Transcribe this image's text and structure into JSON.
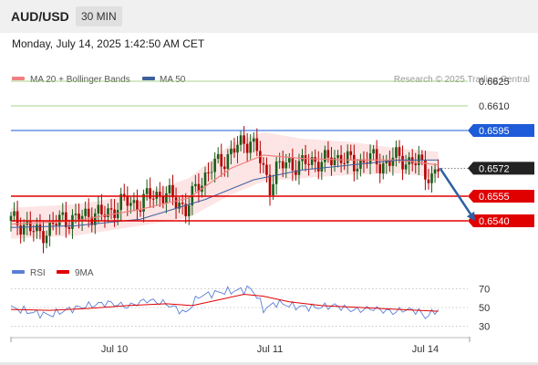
{
  "header": {
    "symbol": "AUD/USD",
    "timeframe": "30 MIN",
    "datetime": "Monday, July 14, 2025 1:42:50 AM CET"
  },
  "legend": {
    "ma20_label": "MA 20 + Bollinger Bands",
    "ma50_label": "MA 50",
    "research": "Research © 2025 Trading Central",
    "rsi_label": "RSI",
    "ma9_label": "9MA"
  },
  "colors": {
    "candle_up": "#1a5e1a",
    "candle_down": "#b30000",
    "ma20": "#f08080",
    "bollinger_fill": "#fde0e0",
    "ma50": "#3e5f9e",
    "resistance_far": "#8cc56a",
    "pivot": "#1e5bd8",
    "support": "#e00000",
    "rsi": "#5b7fd6",
    "rsi_ma": "#e00000",
    "arrow": "#2e5fa3",
    "current_price_bg": "#222222"
  },
  "chart_data": [
    {
      "type": "candlestick",
      "title": "AUD/USD 30 MIN",
      "x_tick_labels": [
        "Jul 10",
        "Jul 11",
        "Jul 14"
      ],
      "price_levels": [
        {
          "value": 0.6625,
          "label": "0.6625",
          "role": "resistance"
        },
        {
          "value": 0.661,
          "label": "0.6610",
          "role": "resistance"
        },
        {
          "value": 0.6595,
          "label": "0.6595",
          "role": "pivot"
        },
        {
          "value": 0.6572,
          "label": "0.6572",
          "role": "current"
        },
        {
          "value": 0.6555,
          "label": "0.6555",
          "role": "support"
        },
        {
          "value": 0.654,
          "label": "0.6540",
          "role": "support"
        }
      ],
      "y_range": [
        0.652,
        0.664
      ],
      "close_path": [
        [
          0,
          0.654
        ],
        [
          4,
          0.6538
        ],
        [
          8,
          0.6532
        ],
        [
          12,
          0.6535
        ],
        [
          16,
          0.6542
        ],
        [
          20,
          0.654
        ],
        [
          24,
          0.6545
        ],
        [
          28,
          0.6543
        ],
        [
          32,
          0.6548
        ],
        [
          36,
          0.6552
        ],
        [
          40,
          0.655
        ],
        [
          44,
          0.6557
        ],
        [
          48,
          0.6555
        ],
        [
          52,
          0.6552
        ],
        [
          54,
          0.6546
        ],
        [
          58,
          0.6563
        ],
        [
          62,
          0.6572
        ],
        [
          66,
          0.6578
        ],
        [
          70,
          0.6585
        ],
        [
          74,
          0.659
        ],
        [
          76,
          0.6582
        ],
        [
          78,
          0.657
        ],
        [
          80,
          0.6562
        ],
        [
          82,
          0.6572
        ],
        [
          86,
          0.6575
        ],
        [
          90,
          0.6574
        ],
        [
          94,
          0.6577
        ],
        [
          98,
          0.6576
        ],
        [
          102,
          0.658
        ],
        [
          106,
          0.6573
        ],
        [
          110,
          0.6579
        ],
        [
          114,
          0.6574
        ],
        [
          118,
          0.6578
        ],
        [
          122,
          0.6577
        ],
        [
          126,
          0.6575
        ],
        [
          128,
          0.657
        ],
        [
          130,
          0.6567
        ],
        [
          132,
          0.6572
        ]
      ],
      "ma50_path": [
        [
          0,
          0.6536
        ],
        [
          20,
          0.6537
        ],
        [
          40,
          0.6541
        ],
        [
          60,
          0.6553
        ],
        [
          75,
          0.6565
        ],
        [
          90,
          0.6571
        ],
        [
          105,
          0.6574
        ],
        [
          120,
          0.6577
        ],
        [
          132,
          0.6577
        ]
      ],
      "ma20_path": [
        [
          0,
          0.6538
        ],
        [
          20,
          0.654
        ],
        [
          40,
          0.6547
        ],
        [
          55,
          0.6554
        ],
        [
          68,
          0.6572
        ],
        [
          78,
          0.658
        ],
        [
          90,
          0.6578
        ],
        [
          105,
          0.6577
        ],
        [
          120,
          0.6577
        ],
        [
          132,
          0.6574
        ]
      ],
      "bollinger_upper": [
        [
          0,
          0.6548
        ],
        [
          20,
          0.655
        ],
        [
          40,
          0.6556
        ],
        [
          55,
          0.6566
        ],
        [
          68,
          0.6587
        ],
        [
          78,
          0.6594
        ],
        [
          90,
          0.659
        ],
        [
          105,
          0.6588
        ],
        [
          120,
          0.6584
        ],
        [
          132,
          0.6582
        ]
      ],
      "bollinger_lower": [
        [
          0,
          0.6529
        ],
        [
          20,
          0.6531
        ],
        [
          40,
          0.6537
        ],
        [
          55,
          0.6542
        ],
        [
          68,
          0.6556
        ],
        [
          78,
          0.6564
        ],
        [
          90,
          0.6566
        ],
        [
          105,
          0.6568
        ],
        [
          120,
          0.6569
        ],
        [
          132,
          0.6566
        ]
      ],
      "forecast_arrow": {
        "from": [
          132,
          0.6572
        ],
        "to": [
          140,
          0.654
        ]
      }
    },
    {
      "type": "line",
      "title": "RSI",
      "y_range": [
        20,
        80
      ],
      "y_ticks": [
        70,
        50,
        30
      ],
      "series": [
        {
          "name": "RSI",
          "path": [
            [
              0,
              50
            ],
            [
              6,
              45
            ],
            [
              12,
              42
            ],
            [
              18,
              48
            ],
            [
              24,
              52
            ],
            [
              30,
              55
            ],
            [
              36,
              51
            ],
            [
              42,
              58
            ],
            [
              48,
              54
            ],
            [
              54,
              44
            ],
            [
              58,
              62
            ],
            [
              64,
              66
            ],
            [
              70,
              68
            ],
            [
              74,
              70
            ],
            [
              76,
              62
            ],
            [
              78,
              48
            ],
            [
              82,
              55
            ],
            [
              88,
              51
            ],
            [
              94,
              50
            ],
            [
              100,
              52
            ],
            [
              106,
              47
            ],
            [
              112,
              49
            ],
            [
              118,
              45
            ],
            [
              122,
              48
            ],
            [
              126,
              46
            ],
            [
              128,
              40
            ],
            [
              130,
              44
            ],
            [
              132,
              48
            ]
          ]
        },
        {
          "name": "9MA",
          "path": [
            [
              0,
              48
            ],
            [
              12,
              47
            ],
            [
              24,
              49
            ],
            [
              36,
              52
            ],
            [
              48,
              54
            ],
            [
              56,
              52
            ],
            [
              64,
              58
            ],
            [
              72,
              64
            ],
            [
              78,
              62
            ],
            [
              86,
              56
            ],
            [
              96,
              52
            ],
            [
              108,
              50
            ],
            [
              120,
              48
            ],
            [
              132,
              46
            ]
          ]
        }
      ]
    }
  ]
}
